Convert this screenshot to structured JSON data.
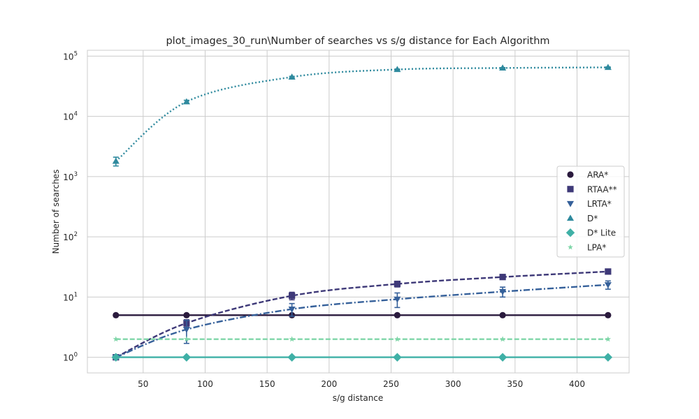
{
  "chart_data": {
    "type": "line",
    "title": "plot_images_30_run\\Number of searches vs s/g distance for Each Algorithm",
    "xlabel": "s/g distance",
    "ylabel": "Number of searches",
    "x_scale": "linear",
    "y_scale": "log",
    "xlim": [
      5,
      442
    ],
    "ylim": [
      0.55,
      125000
    ],
    "xticks": [
      50,
      100,
      150,
      200,
      250,
      300,
      350,
      400
    ],
    "yticks": [
      1,
      10,
      100,
      1000,
      10000,
      100000
    ],
    "ytick_labels": [
      [
        "10",
        "0"
      ],
      [
        "10",
        "1"
      ],
      [
        "10",
        "2"
      ],
      [
        "10",
        "3"
      ],
      [
        "10",
        "4"
      ],
      [
        "10",
        "5"
      ]
    ],
    "grid": true,
    "legend_position": "center-right",
    "x": [
      28,
      85,
      170,
      255,
      340,
      425
    ],
    "series": [
      {
        "name": "ARA*",
        "color": "#2a1a3d",
        "dash": "solid",
        "marker": "circle",
        "values": [
          5,
          5,
          5,
          5,
          5,
          5
        ]
      },
      {
        "name": "RTAA**",
        "color": "#3e3978",
        "dash": "dashed",
        "marker": "square",
        "values": [
          1,
          3.7,
          10.5,
          16.5,
          21.5,
          26.5
        ],
        "error": [
          0,
          0.5,
          1.5,
          1.8,
          1.5,
          1.5
        ]
      },
      {
        "name": "LRTA*",
        "color": "#35609a",
        "dash": "dashdot",
        "marker": "triangle-down",
        "values": [
          1,
          2.9,
          6.3,
          9.2,
          12.3,
          16
        ],
        "error": [
          0,
          1.2,
          1.5,
          2.5,
          2.3,
          2.5
        ]
      },
      {
        "name": "D*",
        "color": "#2f8a9e",
        "dash": "dotted",
        "marker": "triangle-up",
        "values": [
          1800,
          17500,
          45000,
          60000,
          63500,
          65000
        ],
        "error": [
          300,
          1000,
          1200,
          1000,
          1000,
          1000
        ]
      },
      {
        "name": "D* Lite",
        "color": "#3fb0a6",
        "dash": "solid",
        "marker": "diamond",
        "values": [
          1,
          1,
          1,
          1,
          1,
          1
        ]
      },
      {
        "name": "LPA*",
        "color": "#7fd6a8",
        "dash": "dashed",
        "marker": "star",
        "values": [
          2,
          2,
          2,
          2,
          2,
          2
        ]
      }
    ]
  }
}
